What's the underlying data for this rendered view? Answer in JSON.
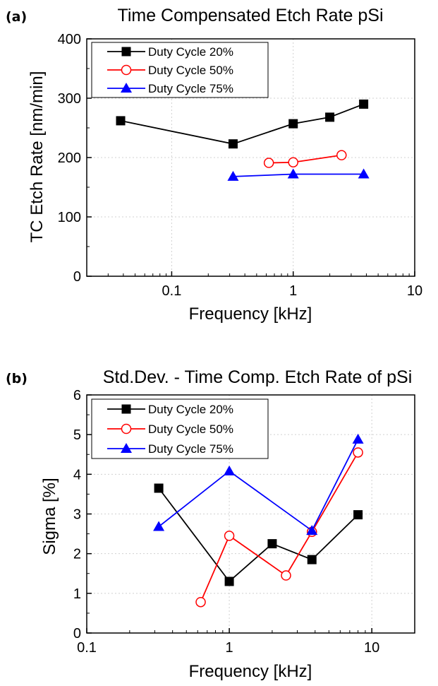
{
  "chart_data": [
    {
      "panel": "(a)",
      "type": "line",
      "title": "Time Compensated Etch Rate pSi",
      "xlabel": "Frequency [kHz]",
      "ylabel": "TC Etch Rate [nm/min]",
      "xscale": "log",
      "xlim": [
        0.02,
        10
      ],
      "ylim": [
        0,
        400
      ],
      "xticks": [
        0.1,
        1,
        10
      ],
      "xtick_labels": [
        "0.1",
        "1",
        "10"
      ],
      "yticks": [
        0,
        100,
        200,
        300,
        400
      ],
      "ytick_labels": [
        "0",
        "100",
        "200",
        "300",
        "400"
      ],
      "grid": true,
      "legend_position": "top-left",
      "series": [
        {
          "name": "Duty Cycle 20%",
          "color": "#000000",
          "marker": "filled-square",
          "x": [
            0.038,
            0.32,
            1.0,
            2.0,
            3.8
          ],
          "y": [
            262,
            223,
            257,
            268,
            290
          ]
        },
        {
          "name": "Duty Cycle 50%",
          "color": "#ff0000",
          "marker": "open-circle",
          "x": [
            0.63,
            1.0,
            2.5
          ],
          "y": [
            191,
            192,
            204
          ]
        },
        {
          "name": "Duty Cycle 75%",
          "color": "#0000ff",
          "marker": "filled-triangle",
          "x": [
            0.32,
            1.0,
            3.8
          ],
          "y": [
            168,
            172,
            172
          ]
        }
      ]
    },
    {
      "panel": "(b)",
      "type": "line",
      "title": "Std.Dev. - Time Comp. Etch Rate of pSi",
      "xlabel": "Frequency [kHz]",
      "ylabel": "Sigma [%]",
      "xscale": "log",
      "xlim": [
        0.1,
        20
      ],
      "ylim": [
        0,
        6
      ],
      "xticks": [
        0.1,
        1,
        10
      ],
      "xtick_labels": [
        "0.1",
        "1",
        "10"
      ],
      "yticks": [
        0,
        1,
        2,
        3,
        4,
        5,
        6
      ],
      "ytick_labels": [
        "0",
        "1",
        "2",
        "3",
        "4",
        "5",
        "6"
      ],
      "grid": true,
      "legend_position": "top-left",
      "series": [
        {
          "name": "Duty Cycle 20%",
          "color": "#000000",
          "marker": "filled-square",
          "x": [
            0.32,
            1.0,
            2.0,
            3.8,
            8.0
          ],
          "y": [
            3.65,
            1.3,
            2.25,
            1.85,
            2.98
          ]
        },
        {
          "name": "Duty Cycle 50%",
          "color": "#ff0000",
          "marker": "open-circle",
          "x": [
            0.63,
            1.0,
            2.5,
            3.8,
            8.0
          ],
          "y": [
            0.78,
            2.45,
            1.45,
            2.55,
            4.55
          ]
        },
        {
          "name": "Duty Cycle 75%",
          "color": "#0000ff",
          "marker": "filled-triangle",
          "x": [
            0.32,
            1.0,
            3.8,
            8.0
          ],
          "y": [
            2.68,
            4.08,
            2.58,
            4.88
          ]
        }
      ]
    }
  ]
}
